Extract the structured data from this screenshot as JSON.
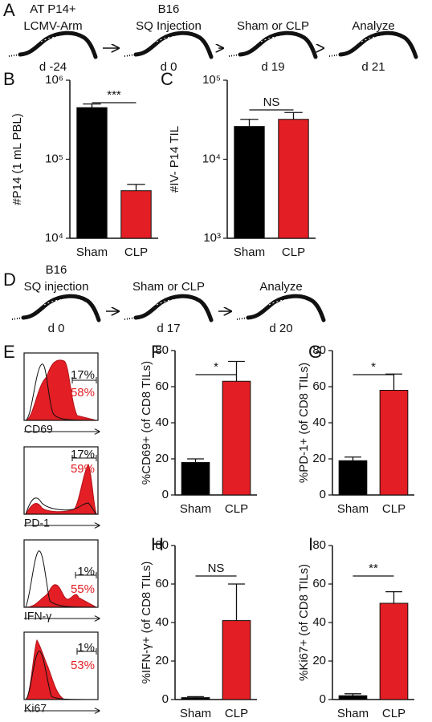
{
  "panel_labels": [
    "A",
    "B",
    "C",
    "D",
    "E",
    "F",
    "G",
    "H",
    "I"
  ],
  "timeline_a": {
    "steps": [
      {
        "lines": [
          "AT P14+",
          "LCMV-Arm"
        ],
        "day": "d -24"
      },
      {
        "lines": [
          "B16",
          "SQ Injection"
        ],
        "day": "d 0"
      },
      {
        "lines": [
          "Sham or CLP"
        ],
        "day": "d 19"
      },
      {
        "lines": [
          "Analyze"
        ],
        "day": "d 21"
      }
    ]
  },
  "timeline_d": {
    "steps": [
      {
        "lines": [
          "B16",
          "SQ injection"
        ],
        "day": "d 0"
      },
      {
        "lines": [
          "Sham or CLP"
        ],
        "day": "d 17"
      },
      {
        "lines": [
          "Analyze"
        ],
        "day": "d 20"
      }
    ]
  },
  "flow_panels": [
    {
      "marker": "CD69",
      "sham_percent": "17%",
      "clp_percent": "58%"
    },
    {
      "marker": "PD-1",
      "sham_percent": "17%",
      "clp_percent": "59%"
    },
    {
      "marker": "IFN-γ",
      "sham_percent": "1%",
      "clp_percent": "55%"
    },
    {
      "marker": "Ki67",
      "sham_percent": "1%",
      "clp_percent": "53%"
    }
  ],
  "chart_data": [
    {
      "type": "bar",
      "ylabel": "#P14 (1 mL PBL)",
      "categories": [
        "Sham",
        "CLP"
      ],
      "values": [
        450000,
        40000
      ],
      "errors": [
        50000,
        8000
      ],
      "colors": [
        "#000000",
        "#e31e24"
      ],
      "log_scale": true,
      "ylim": [
        10000,
        1000000
      ],
      "yticks": [
        {
          "value": 10000,
          "label": "10⁴"
        },
        {
          "value": 100000,
          "label": "10⁵"
        },
        {
          "value": 1000000,
          "label": "10⁶"
        }
      ],
      "significance": "***"
    },
    {
      "type": "bar",
      "ylabel": "#IV- P14 TIL",
      "categories": [
        "Sham",
        "CLP"
      ],
      "values": [
        26000,
        32000
      ],
      "errors": [
        6000,
        7000
      ],
      "colors": [
        "#000000",
        "#e31e24"
      ],
      "log_scale": true,
      "ylim": [
        1000,
        100000
      ],
      "yticks": [
        {
          "value": 1000,
          "label": "10³"
        },
        {
          "value": 10000,
          "label": "10⁴"
        },
        {
          "value": 100000,
          "label": "10⁵"
        }
      ],
      "significance": "NS"
    },
    {
      "type": "bar",
      "ylabel": "%CD69+ (of CD8 TILs)",
      "categories": [
        "Sham",
        "CLP"
      ],
      "values": [
        18,
        63
      ],
      "errors": [
        2,
        11
      ],
      "colors": [
        "#000000",
        "#e31e24"
      ],
      "log_scale": false,
      "ylim": [
        0,
        80
      ],
      "yticks": [
        0,
        20,
        40,
        60,
        80
      ],
      "significance": "*"
    },
    {
      "type": "bar",
      "ylabel": "%PD-1+ (of CD8 TILs)",
      "categories": [
        "Sham",
        "CLP"
      ],
      "values": [
        19,
        58
      ],
      "errors": [
        2,
        9
      ],
      "colors": [
        "#000000",
        "#e31e24"
      ],
      "log_scale": false,
      "ylim": [
        0,
        80
      ],
      "yticks": [
        0,
        20,
        40,
        60,
        80
      ],
      "significance": "*"
    },
    {
      "type": "bar",
      "ylabel": "%IFN-γ+ (of CD8 TILs)",
      "categories": [
        "Sham",
        "CLP"
      ],
      "values": [
        1,
        41
      ],
      "errors": [
        0.5,
        19
      ],
      "colors": [
        "#000000",
        "#e31e24"
      ],
      "log_scale": false,
      "ylim": [
        0,
        80
      ],
      "yticks": [
        0,
        20,
        40,
        60,
        80
      ],
      "significance": "NS"
    },
    {
      "type": "bar",
      "ylabel": "%Ki67+ (of CD8 TILs)",
      "categories": [
        "Sham",
        "CLP"
      ],
      "values": [
        2,
        50
      ],
      "errors": [
        1,
        6
      ],
      "colors": [
        "#000000",
        "#e31e24"
      ],
      "log_scale": false,
      "ylim": [
        0,
        80
      ],
      "yticks": [
        0,
        20,
        40,
        60,
        80
      ],
      "significance": "**"
    }
  ]
}
